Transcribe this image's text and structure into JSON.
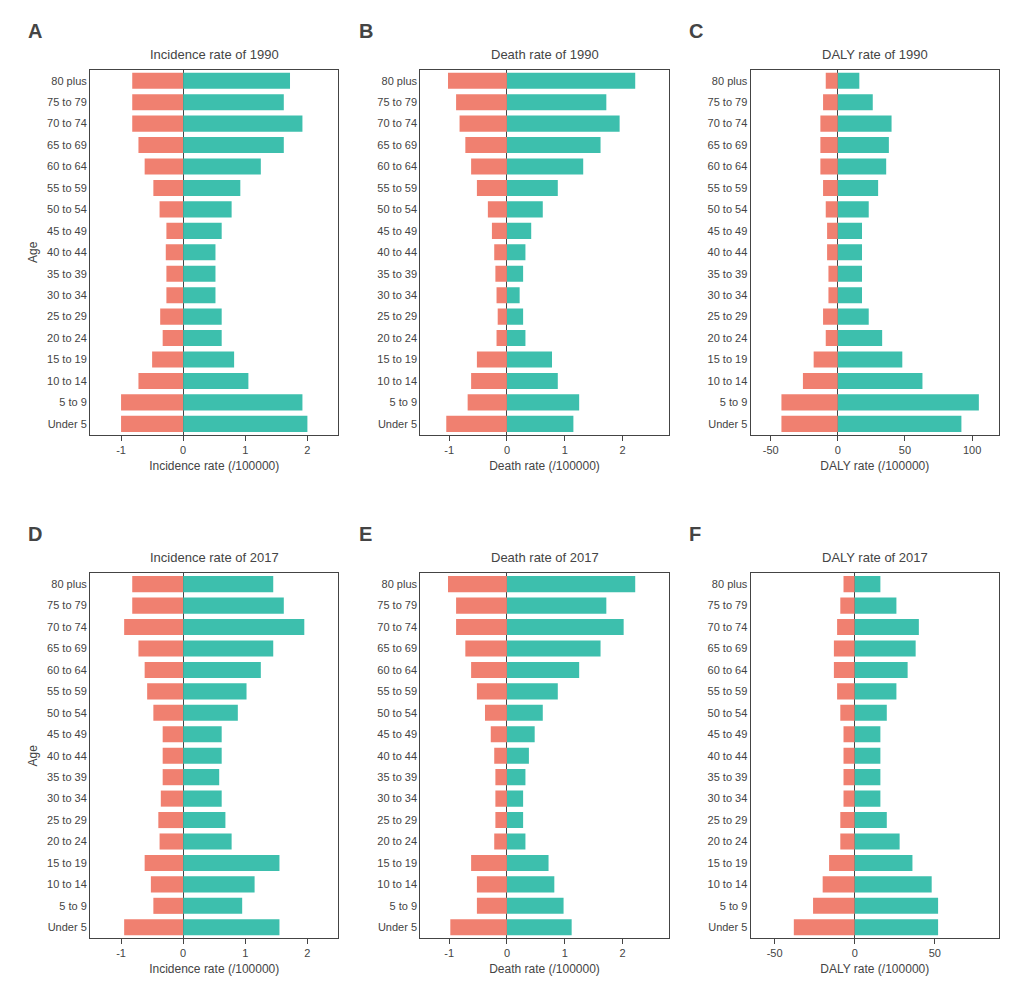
{
  "chart_data": [
    {
      "type": "bar",
      "orientation": "horizontal",
      "title": "Incidence rate of 1990",
      "xlabel": "Incidence rate (/100000)",
      "ylabel": "Age",
      "annotations": [
        {
          "text": "A"
        }
      ],
      "categories": [
        "Under 5",
        "5 to 9",
        "10 to 14",
        "15 to 19",
        "20 to 24",
        "25 to 29",
        "30 to 34",
        "35 to 39",
        "40 to 44",
        "45 to 49",
        "50 to 54",
        "55 to 59",
        "60 to 64",
        "65 to 69",
        "70 to 74",
        "75 to 79",
        "80 plus"
      ],
      "series": [
        {
          "color": "#F08070",
          "values": [
            -1.0,
            -1.0,
            -0.72,
            -0.5,
            -0.33,
            -0.37,
            -0.27,
            -0.27,
            -0.28,
            -0.27,
            -0.38,
            -0.48,
            -0.62,
            -0.72,
            -0.82,
            -0.82,
            -0.82
          ]
        },
        {
          "color": "#3DBFAD",
          "values": [
            2.0,
            1.92,
            1.05,
            0.82,
            0.62,
            0.62,
            0.52,
            0.52,
            0.52,
            0.62,
            0.78,
            0.92,
            1.25,
            1.62,
            1.92,
            1.62,
            1.72
          ]
        }
      ],
      "xlim": [
        -1.5,
        2.5
      ],
      "xticks": [
        -1,
        0,
        1,
        2
      ],
      "grid": false
    },
    {
      "type": "bar",
      "orientation": "horizontal",
      "title": "Death rate of 1990",
      "xlabel": "Death rate (/100000)",
      "annotations": [
        {
          "text": "B"
        }
      ],
      "categories": [
        "Under 5",
        "5 to 9",
        "10 to 14",
        "15 to 19",
        "20 to 24",
        "25 to 29",
        "30 to 34",
        "35 to 39",
        "40 to 44",
        "45 to 49",
        "50 to 54",
        "55 to 59",
        "60 to 64",
        "65 to 69",
        "70 to 74",
        "75 to 79",
        "80 plus"
      ],
      "series": [
        {
          "color": "#F08070",
          "values": [
            -1.05,
            -0.68,
            -0.62,
            -0.52,
            -0.18,
            -0.16,
            -0.18,
            -0.2,
            -0.22,
            -0.26,
            -0.33,
            -0.52,
            -0.62,
            -0.72,
            -0.82,
            -0.88,
            -1.02
          ]
        },
        {
          "color": "#3DBFAD",
          "values": [
            1.15,
            1.25,
            0.88,
            0.78,
            0.32,
            0.28,
            0.22,
            0.28,
            0.32,
            0.42,
            0.62,
            0.88,
            1.32,
            1.62,
            1.95,
            1.72,
            2.22
          ]
        }
      ],
      "xlim": [
        -1.5,
        2.8
      ],
      "xticks": [
        -1,
        0,
        1,
        2
      ],
      "grid": false
    },
    {
      "type": "bar",
      "orientation": "horizontal",
      "title": "DALY rate of 1990",
      "xlabel": "DALY rate (/100000)",
      "annotations": [
        {
          "text": "C"
        }
      ],
      "categories": [
        "Under 5",
        "5 to 9",
        "10 to 14",
        "15 to 19",
        "20 to 24",
        "25 to 29",
        "30 to 34",
        "35 to 39",
        "40 to 44",
        "45 to 49",
        "50 to 54",
        "55 to 59",
        "60 to 64",
        "65 to 69",
        "70 to 74",
        "75 to 79",
        "80 plus"
      ],
      "series": [
        {
          "color": "#F08070",
          "values": [
            -42,
            -42,
            -26,
            -18,
            -9,
            -11,
            -7,
            -7,
            -8,
            -8,
            -9,
            -11,
            -13,
            -13,
            -13,
            -11,
            -9
          ]
        },
        {
          "color": "#3DBFAD",
          "values": [
            92,
            105,
            63,
            48,
            33,
            23,
            18,
            18,
            18,
            18,
            23,
            30,
            36,
            38,
            40,
            26,
            16
          ]
        }
      ],
      "xlim": [
        -65,
        120
      ],
      "xticks": [
        -50,
        0,
        50,
        100
      ],
      "grid": false
    },
    {
      "type": "bar",
      "orientation": "horizontal",
      "title": "Incidence rate of 2017",
      "xlabel": "Incidence rate (/100000)",
      "ylabel": "Age",
      "annotations": [
        {
          "text": "D"
        }
      ],
      "categories": [
        "Under 5",
        "5 to 9",
        "10 to 14",
        "15 to 19",
        "20 to 24",
        "25 to 29",
        "30 to 34",
        "35 to 39",
        "40 to 44",
        "45 to 49",
        "50 to 54",
        "55 to 59",
        "60 to 64",
        "65 to 69",
        "70 to 74",
        "75 to 79",
        "80 plus"
      ],
      "series": [
        {
          "color": "#F08070",
          "values": [
            -0.95,
            -0.48,
            -0.52,
            -0.62,
            -0.38,
            -0.4,
            -0.36,
            -0.33,
            -0.33,
            -0.33,
            -0.48,
            -0.58,
            -0.62,
            -0.72,
            -0.95,
            -0.82,
            -0.82
          ]
        },
        {
          "color": "#3DBFAD",
          "values": [
            1.55,
            0.95,
            1.15,
            1.55,
            0.78,
            0.68,
            0.62,
            0.58,
            0.62,
            0.62,
            0.88,
            1.02,
            1.25,
            1.45,
            1.95,
            1.62,
            1.45
          ]
        }
      ],
      "xlim": [
        -1.5,
        2.5
      ],
      "xticks": [
        -1,
        0,
        1,
        2
      ],
      "grid": false
    },
    {
      "type": "bar",
      "orientation": "horizontal",
      "title": "Death rate of 2017",
      "xlabel": "Death rate (/100000)",
      "annotations": [
        {
          "text": "E"
        }
      ],
      "categories": [
        "Under 5",
        "5 to 9",
        "10 to 14",
        "15 to 19",
        "20 to 24",
        "25 to 29",
        "30 to 34",
        "35 to 39",
        "40 to 44",
        "45 to 49",
        "50 to 54",
        "55 to 59",
        "60 to 64",
        "65 to 69",
        "70 to 74",
        "75 to 79",
        "80 plus"
      ],
      "series": [
        {
          "color": "#F08070",
          "values": [
            -0.98,
            -0.52,
            -0.52,
            -0.62,
            -0.22,
            -0.2,
            -0.2,
            -0.2,
            -0.22,
            -0.28,
            -0.38,
            -0.52,
            -0.62,
            -0.72,
            -0.88,
            -0.88,
            -1.02
          ]
        },
        {
          "color": "#3DBFAD",
          "values": [
            1.12,
            0.98,
            0.82,
            0.72,
            0.32,
            0.28,
            0.28,
            0.32,
            0.38,
            0.48,
            0.62,
            0.88,
            1.25,
            1.62,
            2.02,
            1.72,
            2.22
          ]
        }
      ],
      "xlim": [
        -1.5,
        2.8
      ],
      "xticks": [
        -1,
        0,
        1,
        2
      ],
      "grid": false
    },
    {
      "type": "bar",
      "orientation": "horizontal",
      "title": "DALY rate of 2017",
      "xlabel": "DALY rate (/100000)",
      "annotations": [
        {
          "text": "F"
        }
      ],
      "categories": [
        "Under 5",
        "5 to 9",
        "10 to 14",
        "15 to 19",
        "20 to 24",
        "25 to 29",
        "30 to 34",
        "35 to 39",
        "40 to 44",
        "45 to 49",
        "50 to 54",
        "55 to 59",
        "60 to 64",
        "65 to 69",
        "70 to 74",
        "75 to 79",
        "80 plus"
      ],
      "series": [
        {
          "color": "#F08070",
          "values": [
            -38,
            -26,
            -20,
            -16,
            -9,
            -9,
            -7,
            -7,
            -7,
            -7,
            -9,
            -11,
            -13,
            -13,
            -11,
            -9,
            -7
          ]
        },
        {
          "color": "#3DBFAD",
          "values": [
            52,
            52,
            48,
            36,
            28,
            20,
            16,
            16,
            16,
            16,
            20,
            26,
            33,
            38,
            40,
            26,
            16
          ]
        }
      ],
      "xlim": [
        -65,
        90
      ],
      "xticks": [
        -50,
        0,
        50
      ],
      "grid": false
    }
  ]
}
